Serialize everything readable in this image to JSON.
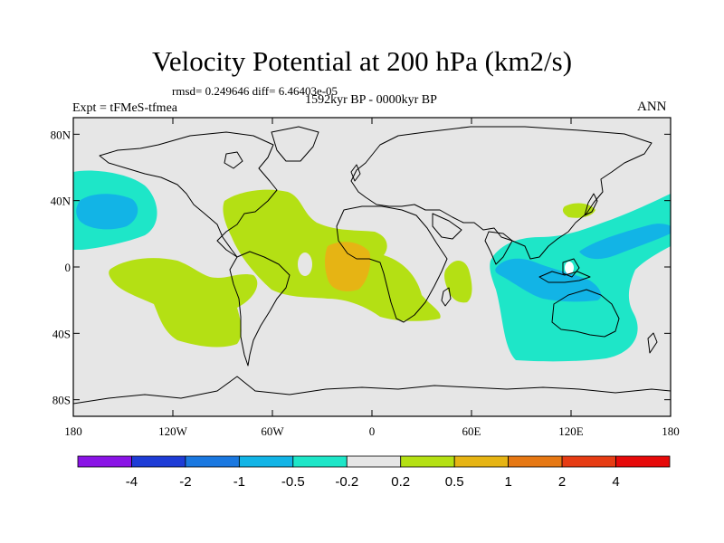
{
  "header": {
    "title": "Velocity Potential at 200 hPa (km2/s)",
    "stats": "rmsd= 0.249646 diff= 6.46403e-05",
    "period": "1592kyr BP - 0000kyr BP",
    "experiment": "Expt = tFMeS-tfmea",
    "season": "ANN"
  },
  "map": {
    "projection": "cylindrical equidistant",
    "lon_range": [
      -180,
      180
    ],
    "lat_range": [
      -90,
      90
    ],
    "x_ticks": [
      {
        "lon": -180,
        "label": "180"
      },
      {
        "lon": -120,
        "label": "120W"
      },
      {
        "lon": -60,
        "label": "60W"
      },
      {
        "lon": 0,
        "label": "0"
      },
      {
        "lon": 60,
        "label": "60E"
      },
      {
        "lon": 120,
        "label": "120E"
      },
      {
        "lon": 180,
        "label": "180"
      }
    ],
    "y_ticks": [
      {
        "lat": 80,
        "label": "80N"
      },
      {
        "lat": 40,
        "label": "40N"
      },
      {
        "lat": 0,
        "label": "0"
      },
      {
        "lat": -40,
        "label": "40S"
      },
      {
        "lat": -80,
        "label": "80S"
      }
    ],
    "background_color": "#e6e6e6",
    "coastline_color": "#000000"
  },
  "colorbar": {
    "labels": [
      "-4",
      "-2",
      "-1",
      "-0.5",
      "-0.2",
      "0.2",
      "0.5",
      "1",
      "2",
      "4"
    ],
    "colors": [
      "#8a14e6",
      "#1e3cd6",
      "#1a78e0",
      "#12b4e6",
      "#1ee6c8",
      "#e6e6e6",
      "#b4e014",
      "#e6b414",
      "#e67814",
      "#e63c14",
      "#e60a0a"
    ]
  }
}
